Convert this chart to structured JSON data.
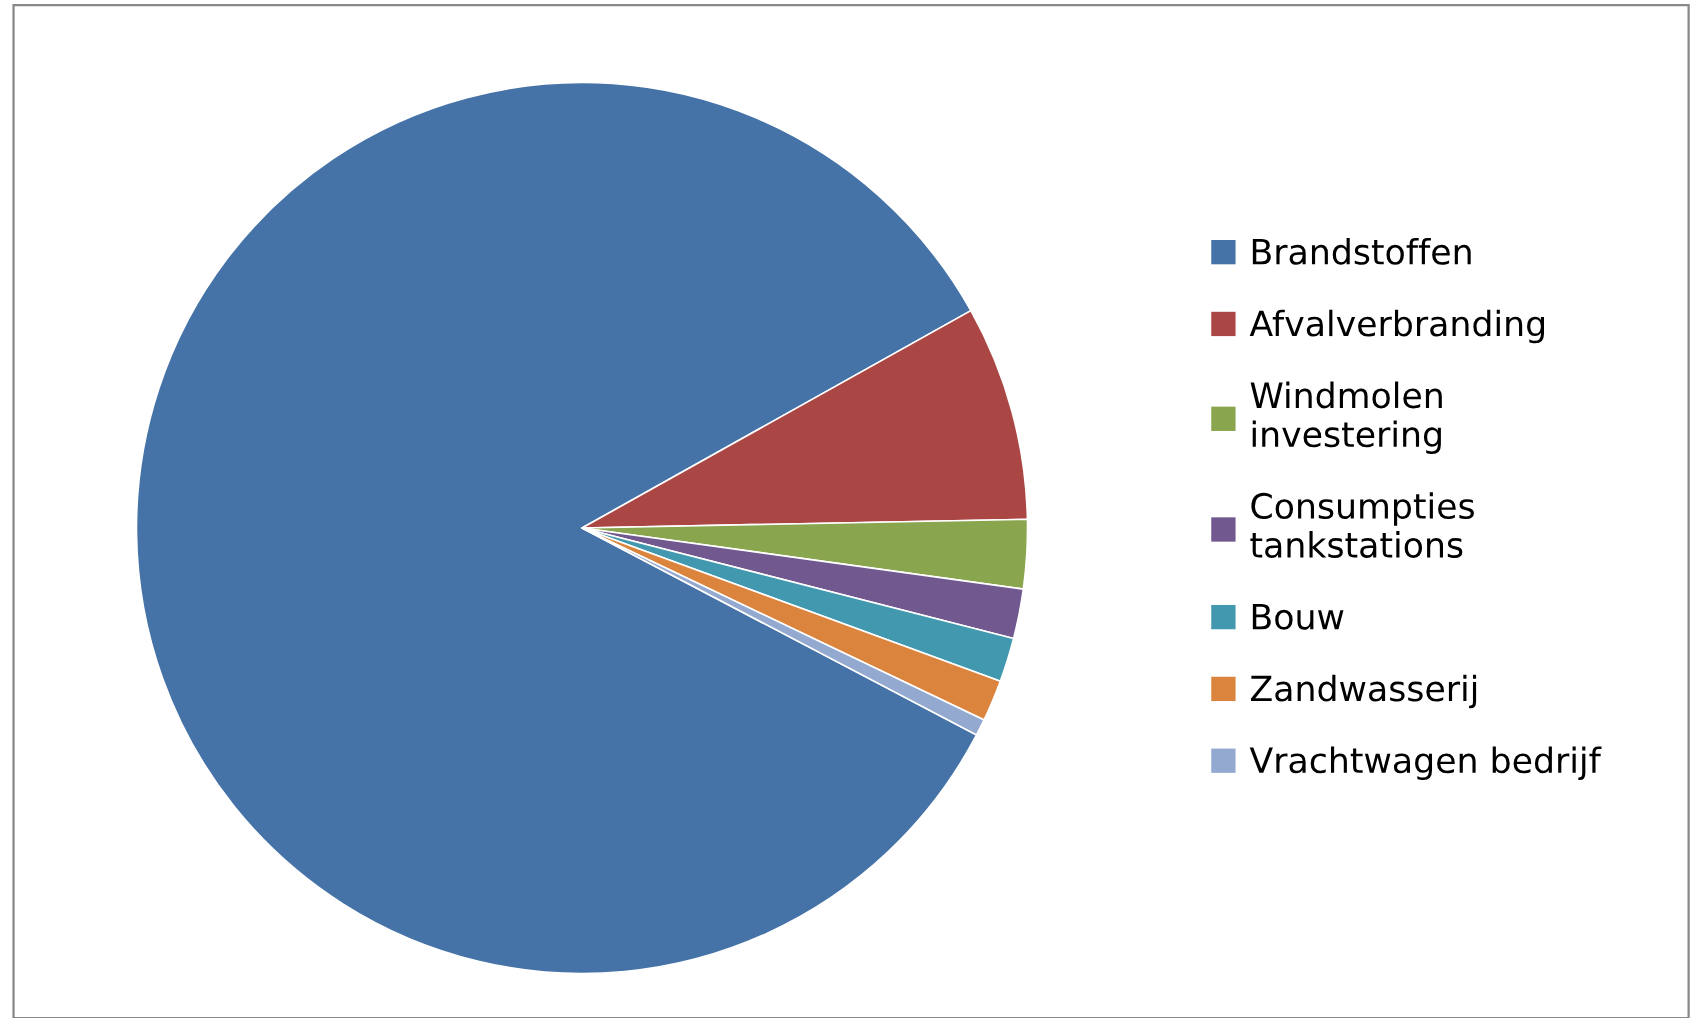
{
  "chart_data": {
    "type": "pie",
    "categories": [
      "Brandstoffen",
      "Afvalverbranding",
      "Windmolen\ninvestering",
      "Consumpties\ntankstations",
      "Bouw",
      "Zandwasserij",
      "Vrachtwagen bedrijf"
    ],
    "values": [
      84.2,
      7.8,
      2.5,
      1.8,
      1.6,
      1.5,
      0.6
    ],
    "colors": [
      "#4572a7",
      "#aa4643",
      "#89a54e",
      "#71588f",
      "#4198af",
      "#db843d",
      "#93a9cf"
    ],
    "legend": "right"
  }
}
